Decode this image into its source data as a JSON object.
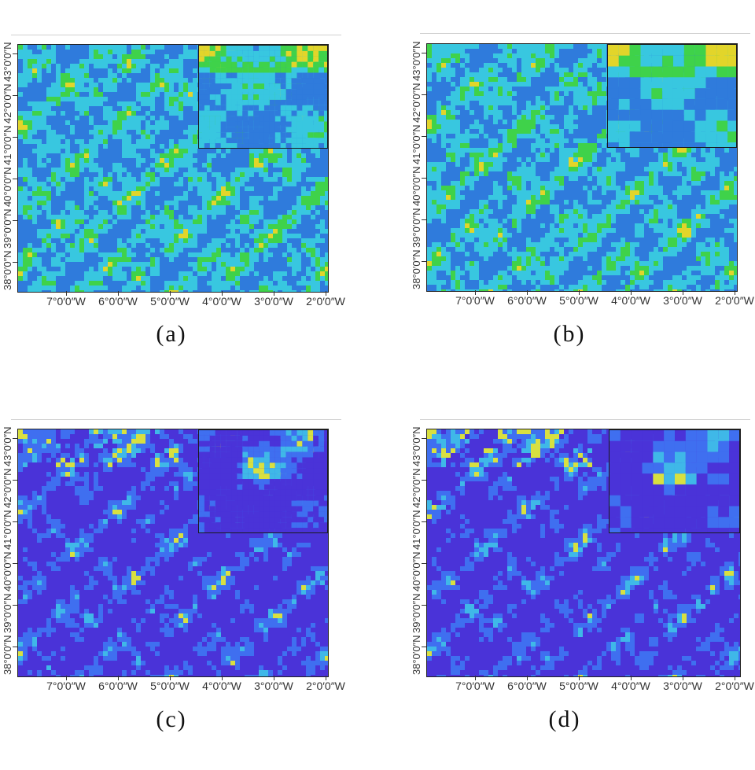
{
  "panels": [
    {
      "id": "a",
      "caption": "(a)",
      "colormap": "green",
      "inset_style": "smooth",
      "lon_labels": [
        "7°0′0″W",
        "6°0′0″W",
        "5°0′0″W",
        "4°0′0″W",
        "3°0′0″W",
        "2°0′0″W"
      ],
      "lat_labels": [
        "43°0′0″N",
        "42°0′0″N",
        "41°0′0″N",
        "40°0′0″N",
        "39°0′0″N",
        "38°0′0″N"
      ]
    },
    {
      "id": "b",
      "caption": "(b)",
      "colormap": "green",
      "inset_style": "blocky",
      "lon_labels": [
        "7°0′0″W",
        "6°0′0″W",
        "5°0′0″W",
        "4°0′0″W",
        "3°0′0″W",
        "2°0′0″W"
      ],
      "lat_labels": [
        "43°0′0″N",
        "42°0′0″N",
        "41°0′0″N",
        "40°0′0″N",
        "39°0′0″N",
        "38°0′0″N"
      ]
    },
    {
      "id": "c",
      "caption": "(c)",
      "colormap": "purple",
      "inset_style": "smooth",
      "lon_labels": [
        "7°0′0″W",
        "6°0′0″W",
        "5°0′0″W",
        "4°0′0″W",
        "3°0′0″W",
        "2°0′0″W"
      ],
      "lat_labels": [
        "43°0′0″N",
        "42°0′0″N",
        "41°0′0″N",
        "40°0′0″N",
        "39°0′0″N",
        "38°0′0″N"
      ]
    },
    {
      "id": "d",
      "caption": "(d)",
      "colormap": "purple",
      "inset_style": "blocky",
      "lon_labels": [
        "7°0′0″W",
        "6°0′0″W",
        "5°0′0″W",
        "4°0′0″W",
        "3°0′0″W",
        "2°0′0″W"
      ],
      "lat_labels": [
        "43°0′0″N",
        "42°0′0″N",
        "41°0′0″N",
        "40°0′0″N",
        "39°0′0″N",
        "38°0′0″N"
      ]
    }
  ],
  "colors": {
    "green_base": "#2f7bdc",
    "green_mid": "#38c7e0",
    "green_high": "#3fd24a",
    "green_peak": "#e2d52a",
    "purple_base": "#4a33d8",
    "purple_mid": "#3f6ff0",
    "purple_high": "#3fb8e8",
    "purple_peak": "#d8e040"
  }
}
